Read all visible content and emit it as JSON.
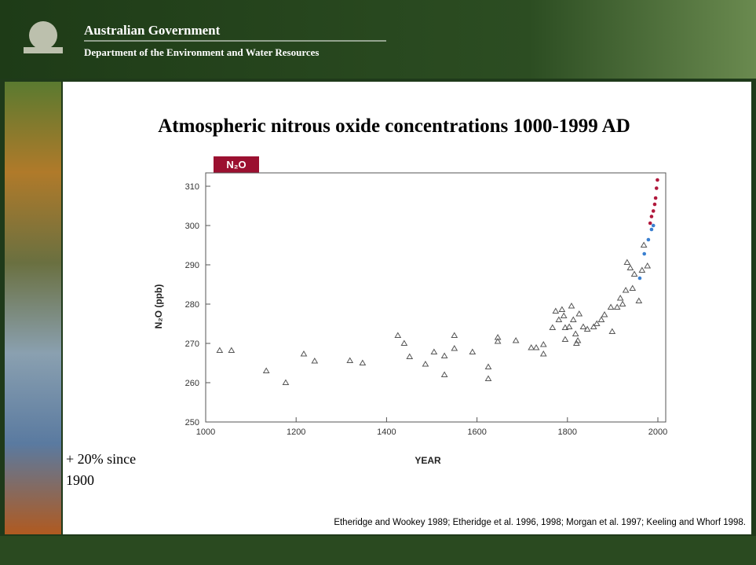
{
  "header": {
    "title": "Australian Government",
    "subtitle": "Department of the Environment and Water Resources"
  },
  "note": [
    "+ 20% since",
    "1900"
  ],
  "citation": "Etheridge and Wookey 1989; Etheridge et al. 1996, 1998; Morgan et al. 1997; Keeling and Whorf 1998.",
  "chart_data": {
    "type": "scatter",
    "title": "Atmospheric nitrous oxide concentrations 1000-1999 AD",
    "label": "N₂O",
    "y_label": "N₂O (ppb)",
    "x_label": "YEAR",
    "xlim": [
      1000,
      2000
    ],
    "xticks": [
      1000,
      1200,
      1400,
      1600,
      1800,
      2000
    ],
    "ylim": [
      250,
      312
    ],
    "yticks": [
      250,
      260,
      270,
      280,
      290,
      300,
      310
    ],
    "series": [
      {
        "color": "#555555",
        "marker": "triangle",
        "x": [
          1031,
          1057,
          1134,
          1177,
          1217,
          1241,
          1319,
          1347,
          1425,
          1439,
          1451,
          1486,
          1505,
          1528,
          1550,
          1550,
          1528,
          1590,
          1625,
          1625,
          1646,
          1646,
          1686,
          1720,
          1731,
          1747,
          1747,
          1767,
          1774,
          1781,
          1788,
          1792,
          1795,
          1795,
          1804,
          1809,
          1813,
          1818,
          1820,
          1823,
          1826,
          1835,
          1844,
          1858,
          1865,
          1875,
          1882,
          1896,
          1899,
          1910,
          1917,
          1922,
          1929,
          1932,
          1939,
          1944,
          1948,
          1958,
          1965,
          1969,
          1977
        ],
        "values": [
          268.2,
          268.2,
          263,
          260,
          267.3,
          265.5,
          265.6,
          265,
          272,
          270,
          266.6,
          264.7,
          267.8,
          266.8,
          272,
          268.7,
          262,
          267.8,
          264,
          261,
          271.5,
          270.5,
          270.7,
          268.9,
          268.9,
          269.7,
          267.3,
          274,
          278.2,
          276,
          278.6,
          277,
          274,
          271,
          274.2,
          279.5,
          276,
          272.4,
          270,
          270.7,
          277.5,
          274.2,
          273.6,
          274.2,
          275,
          276,
          277.3,
          279.2,
          273,
          279.2,
          281.5,
          280,
          283.5,
          290.6,
          289.2,
          284,
          287.6,
          280.8,
          288.6,
          295,
          289.7
        ]
      },
      {
        "color": "#3a7fd0",
        "marker": "circle",
        "x": [
          1960,
          1970,
          1979,
          1986,
          1990
        ],
        "values": [
          286.6,
          292.8,
          296.4,
          299,
          300
        ]
      },
      {
        "color": "#b0183c",
        "marker": "circle",
        "x": [
          1983,
          1986,
          1990,
          1993,
          1995,
          1997,
          1999
        ],
        "values": [
          300.6,
          302.3,
          303.7,
          305.4,
          307,
          309.5,
          311.6
        ]
      }
    ]
  }
}
